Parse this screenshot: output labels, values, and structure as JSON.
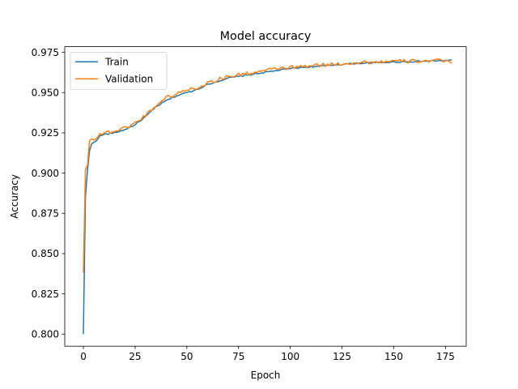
{
  "chart_data": {
    "type": "line",
    "title": "Model accuracy",
    "xlabel": "Epoch",
    "ylabel": "Accuracy",
    "xlim": [
      -9,
      185
    ],
    "ylim": [
      0.7925,
      0.9785
    ],
    "xticks": [
      0,
      25,
      50,
      75,
      100,
      125,
      150,
      175
    ],
    "yticks": [
      0.8,
      0.825,
      0.85,
      0.875,
      0.9,
      0.925,
      0.95,
      0.975
    ],
    "xtick_labels": [
      "0",
      "25",
      "50",
      "75",
      "100",
      "125",
      "150",
      "175"
    ],
    "ytick_labels": [
      "0.800",
      "0.825",
      "0.850",
      "0.875",
      "0.900",
      "0.925",
      "0.950",
      "0.975"
    ],
    "grid": false,
    "legend_position": "top-left",
    "series": [
      {
        "name": "Train",
        "color": "#1f77b4",
        "anchors": [
          [
            0,
            0.8
          ],
          [
            1,
            0.885
          ],
          [
            2,
            0.902
          ],
          [
            3,
            0.914
          ],
          [
            4,
            0.918
          ],
          [
            6,
            0.92
          ],
          [
            8,
            0.923
          ],
          [
            10,
            0.924
          ],
          [
            15,
            0.925
          ],
          [
            20,
            0.927
          ],
          [
            25,
            0.93
          ],
          [
            30,
            0.935
          ],
          [
            35,
            0.941
          ],
          [
            40,
            0.945
          ],
          [
            45,
            0.948
          ],
          [
            50,
            0.95
          ],
          [
            55,
            0.952
          ],
          [
            60,
            0.955
          ],
          [
            65,
            0.957
          ],
          [
            70,
            0.959
          ],
          [
            75,
            0.96
          ],
          [
            80,
            0.961
          ],
          [
            85,
            0.962
          ],
          [
            90,
            0.963
          ],
          [
            95,
            0.964
          ],
          [
            100,
            0.965
          ],
          [
            105,
            0.9655
          ],
          [
            110,
            0.966
          ],
          [
            115,
            0.9665
          ],
          [
            120,
            0.967
          ],
          [
            125,
            0.9675
          ],
          [
            130,
            0.968
          ],
          [
            140,
            0.9685
          ],
          [
            150,
            0.969
          ],
          [
            160,
            0.9693
          ],
          [
            170,
            0.9697
          ],
          [
            178,
            0.97
          ]
        ]
      },
      {
        "name": "Validation",
        "color": "#ff7f0e",
        "anchors": [
          [
            0,
            0.838
          ],
          [
            1,
            0.902
          ],
          [
            2,
            0.905
          ],
          [
            3,
            0.92
          ],
          [
            4,
            0.921
          ],
          [
            6,
            0.922
          ],
          [
            8,
            0.924
          ],
          [
            10,
            0.925
          ],
          [
            15,
            0.926
          ],
          [
            20,
            0.928
          ],
          [
            25,
            0.931
          ],
          [
            30,
            0.936
          ],
          [
            35,
            0.942
          ],
          [
            40,
            0.947
          ],
          [
            45,
            0.949
          ],
          [
            50,
            0.952
          ],
          [
            55,
            0.953
          ],
          [
            60,
            0.956
          ],
          [
            65,
            0.958
          ],
          [
            70,
            0.96
          ],
          [
            75,
            0.961
          ],
          [
            80,
            0.962
          ],
          [
            85,
            0.963
          ],
          [
            90,
            0.964
          ],
          [
            95,
            0.965
          ],
          [
            100,
            0.9655
          ],
          [
            105,
            0.966
          ],
          [
            110,
            0.9665
          ],
          [
            115,
            0.967
          ],
          [
            120,
            0.9675
          ],
          [
            125,
            0.968
          ],
          [
            130,
            0.9685
          ],
          [
            140,
            0.969
          ],
          [
            150,
            0.9693
          ],
          [
            160,
            0.9696
          ],
          [
            170,
            0.9698
          ],
          [
            178,
            0.9692
          ]
        ]
      }
    ]
  }
}
